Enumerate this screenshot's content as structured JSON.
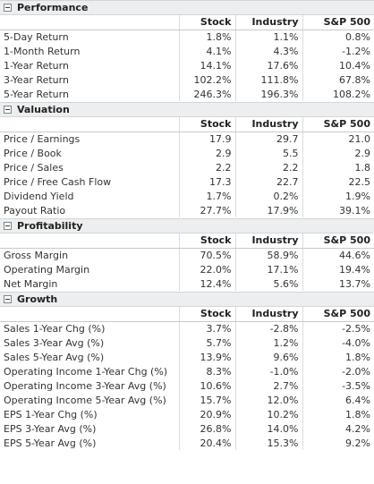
{
  "columns": [
    "Stock",
    "Industry",
    "S&P 500"
  ],
  "sections": [
    {
      "title": "Performance",
      "colored": true,
      "rows": [
        {
          "label": "5-Day Return",
          "values": [
            "1.8%",
            "1.1%",
            "0.8%"
          ],
          "signs": [
            "pos",
            "pos",
            "pos"
          ]
        },
        {
          "label": "1-Month Return",
          "values": [
            "4.1%",
            "4.3%",
            "-1.2%"
          ],
          "signs": [
            "pos",
            "pos",
            "neg"
          ]
        },
        {
          "label": "1-Year Return",
          "values": [
            "14.1%",
            "17.6%",
            "10.4%"
          ],
          "signs": [
            "pos",
            "pos",
            "pos"
          ]
        },
        {
          "label": "3-Year Return",
          "values": [
            "102.2%",
            "111.8%",
            "67.8%"
          ],
          "signs": [
            "pos",
            "pos",
            "pos"
          ]
        },
        {
          "label": "5-Year Return",
          "values": [
            "246.3%",
            "196.3%",
            "108.2%"
          ],
          "signs": [
            "pos",
            "pos",
            "pos"
          ]
        }
      ]
    },
    {
      "title": "Valuation",
      "colored": false,
      "rows": [
        {
          "label": "Price / Earnings",
          "values": [
            "17.9",
            "29.7",
            "21.0"
          ]
        },
        {
          "label": "Price / Book",
          "values": [
            "2.9",
            "5.5",
            "2.9"
          ]
        },
        {
          "label": "Price / Sales",
          "values": [
            "2.2",
            "2.2",
            "1.8"
          ]
        },
        {
          "label": "Price / Free Cash Flow",
          "values": [
            "17.3",
            "22.7",
            "22.5"
          ]
        },
        {
          "label": "Dividend Yield",
          "values": [
            "1.7%",
            "0.2%",
            "1.9%"
          ]
        },
        {
          "label": "Payout Ratio",
          "values": [
            "27.7%",
            "17.9%",
            "39.1%"
          ]
        }
      ]
    },
    {
      "title": "Profitability",
      "colored": false,
      "rows": [
        {
          "label": "Gross Margin",
          "values": [
            "70.5%",
            "58.9%",
            "44.6%"
          ]
        },
        {
          "label": "Operating Margin",
          "values": [
            "22.0%",
            "17.1%",
            "19.4%"
          ]
        },
        {
          "label": "Net Margin",
          "values": [
            "12.4%",
            "5.6%",
            "13.7%"
          ]
        }
      ]
    },
    {
      "title": "Growth",
      "colored": false,
      "rows": [
        {
          "label": "Sales 1-Year Chg (%)",
          "values": [
            "3.7%",
            "-2.8%",
            "-2.5%"
          ]
        },
        {
          "label": "Sales 3-Year Avg (%)",
          "values": [
            "5.7%",
            "1.2%",
            "-4.0%"
          ]
        },
        {
          "label": "Sales 5-Year Avg (%)",
          "values": [
            "13.9%",
            "9.6%",
            "1.8%"
          ]
        },
        {
          "label": "Operating Income 1-Year Chg (%)",
          "values": [
            "8.3%",
            "-1.0%",
            "-2.0%"
          ]
        },
        {
          "label": "Operating Income 3-Year Avg (%)",
          "values": [
            "10.6%",
            "2.7%",
            "-3.5%"
          ]
        },
        {
          "label": "Operating Income 5-Year Avg (%)",
          "values": [
            "15.7%",
            "12.0%",
            "6.4%"
          ]
        },
        {
          "label": "EPS 1-Year Chg (%)",
          "values": [
            "20.9%",
            "10.2%",
            "1.8%"
          ]
        },
        {
          "label": "EPS 3-Year Avg (%)",
          "values": [
            "26.8%",
            "14.0%",
            "4.2%"
          ]
        },
        {
          "label": "EPS 5-Year Avg (%)",
          "values": [
            "20.4%",
            "15.3%",
            "9.2%"
          ]
        }
      ]
    }
  ],
  "colors": {
    "positive": "#2f7d1f",
    "negative": "#d21a1a",
    "header_bg": "#eceeef"
  },
  "icons": {
    "section_toggle": "minus-box-icon"
  }
}
